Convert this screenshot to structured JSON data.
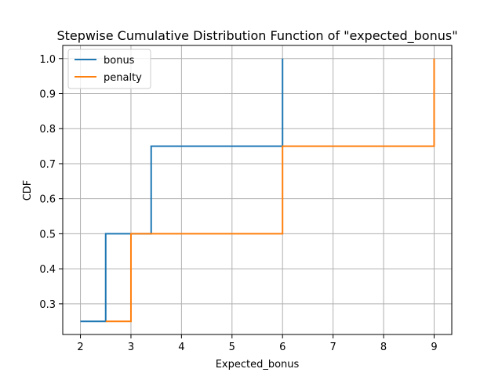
{
  "chart_data": {
    "type": "line",
    "step": "post",
    "title": "Stepwise Cumulative Distribution Function of \"expected_bonus\"",
    "xlabel": "Expected_bonus",
    "ylabel": "CDF",
    "xlim": [
      1.65,
      9.35
    ],
    "ylim": [
      0.2125,
      1.0375
    ],
    "xticks": [
      2,
      3,
      4,
      5,
      6,
      7,
      8,
      9
    ],
    "yticks": [
      0.3,
      0.4,
      0.5,
      0.6,
      0.7,
      0.8,
      0.9,
      1.0
    ],
    "xtick_labels": [
      "2",
      "3",
      "4",
      "5",
      "6",
      "7",
      "8",
      "9"
    ],
    "ytick_labels": [
      "0.3",
      "0.4",
      "0.5",
      "0.6",
      "0.7",
      "0.8",
      "0.9",
      "1.0"
    ],
    "grid": true,
    "legend_position": "upper-left",
    "series": [
      {
        "name": "bonus",
        "color": "#1f77b4",
        "x": [
          2.0,
          2.5,
          3.4,
          6.0
        ],
        "y": [
          0.25,
          0.5,
          0.75,
          1.0
        ]
      },
      {
        "name": "penalty",
        "color": "#ff7f0e",
        "x": [
          2.5,
          3.0,
          6.0,
          9.0
        ],
        "y": [
          0.25,
          0.5,
          0.75,
          1.0
        ]
      }
    ]
  }
}
